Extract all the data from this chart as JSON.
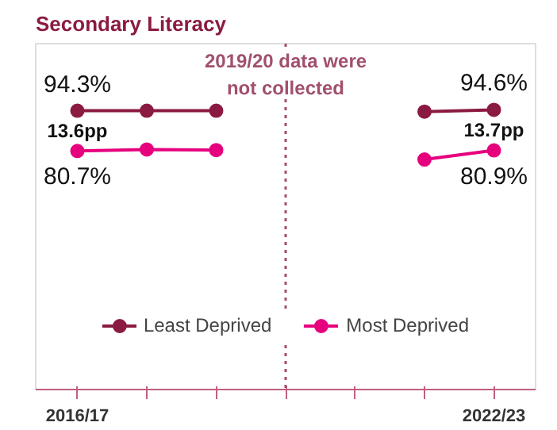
{
  "chart_data": {
    "type": "line",
    "title": "Secondary Literacy",
    "categories": [
      "2016/17",
      null,
      null,
      null,
      null,
      null,
      "2022/23"
    ],
    "ylim": [
      0,
      117
    ],
    "tick_labels": "x",
    "series": [
      {
        "name": "Least Deprived",
        "color": "#8b1a42",
        "values": [
          94.3,
          94.3,
          94.3,
          null,
          null,
          94.0,
          94.6
        ],
        "value_labels": [
          "94.3%",
          null,
          null,
          null,
          null,
          null,
          "94.6%"
        ]
      },
      {
        "name": "Most Deprived",
        "color": "#e6007e",
        "values": [
          80.7,
          81.2,
          81.0,
          null,
          null,
          77.8,
          80.9
        ],
        "value_labels": [
          "80.7%",
          null,
          null,
          null,
          null,
          null,
          "80.9%"
        ]
      }
    ],
    "annotations": [
      "2019/20 data were\nnot collected",
      "13.6pp",
      "13.7pp"
    ],
    "marker": "circle",
    "line_style": "solid",
    "grid": false,
    "legend": "bottom"
  }
}
